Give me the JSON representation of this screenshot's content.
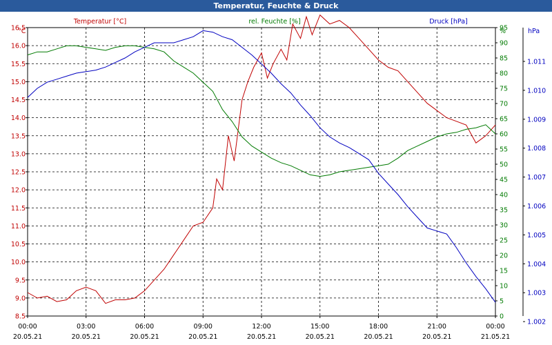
{
  "window": {
    "title": "Temperatur, Feuchte & Druck"
  },
  "chart_data": {
    "type": "line",
    "title": "Temperatur, Feuchte & Druck",
    "x_ticks": [
      {
        "time": "00:00",
        "date": "20.05.21"
      },
      {
        "time": "03:00",
        "date": "20.05.21"
      },
      {
        "time": "06:00",
        "date": "20.05.21"
      },
      {
        "time": "09:00",
        "date": "20.05.21"
      },
      {
        "time": "12:00",
        "date": "20.05.21"
      },
      {
        "time": "15:00",
        "date": "20.05.21"
      },
      {
        "time": "18:00",
        "date": "20.05.21"
      },
      {
        "time": "21:00",
        "date": "20.05.21"
      },
      {
        "time": "00:00",
        "date": "21.05.21"
      }
    ],
    "x_range_hours": [
      0,
      24
    ],
    "axes": {
      "temperature": {
        "unit": "°C",
        "min": 8.5,
        "max": 16.5,
        "ticks": [
          "16.5",
          "16.0",
          "15.5",
          "15.0",
          "14.5",
          "14.0",
          "13.5",
          "13.0",
          "12.5",
          "12.0",
          "11.5",
          "11.0",
          "10.5",
          "10.0",
          "9.5",
          "9.0",
          "8.5"
        ]
      },
      "humidity": {
        "unit": "%",
        "min": 0,
        "max": 95,
        "ticks": [
          "95",
          "90",
          "85",
          "80",
          "75",
          "70",
          "65",
          "60",
          "55",
          "50",
          "45",
          "40",
          "35",
          "30",
          "25",
          "20",
          "15",
          "10",
          "5",
          "0"
        ]
      },
      "pressure": {
        "unit": "hPa",
        "ticks": [
          "1.011",
          "1.010",
          "1.009",
          "1.008",
          "1.007",
          "1.006",
          "1.005",
          "1.004",
          "1.003",
          "1.002"
        ]
      }
    },
    "grid": true,
    "series": [
      {
        "name": "Temperatur [°C]",
        "color": "#c00000",
        "axis": "temperature",
        "x": [
          0,
          0.5,
          1,
          1.5,
          2,
          2.5,
          3,
          3.5,
          4,
          4.5,
          5,
          5.5,
          6,
          6.5,
          7,
          7.5,
          8,
          8.5,
          9,
          9.5,
          9.7,
          10,
          10.3,
          10.6,
          11,
          11.3,
          11.6,
          12,
          12.3,
          12.6,
          13,
          13.3,
          13.6,
          14,
          14.3,
          14.6,
          15,
          15.5,
          16,
          16.5,
          17,
          17.5,
          18,
          18.5,
          19,
          19.5,
          20,
          20.5,
          21,
          21.5,
          22,
          22.5,
          23,
          23.5,
          24
        ],
        "y": [
          9.15,
          9.0,
          9.05,
          8.9,
          8.95,
          9.2,
          9.3,
          9.2,
          8.85,
          8.95,
          8.95,
          9.0,
          9.2,
          9.5,
          9.8,
          10.2,
          10.6,
          11.0,
          11.1,
          11.5,
          12.3,
          12.0,
          13.5,
          12.8,
          14.5,
          15.0,
          15.4,
          15.8,
          15.1,
          15.5,
          15.9,
          15.6,
          16.6,
          16.2,
          16.8,
          16.3,
          16.85,
          16.6,
          16.7,
          16.5,
          16.2,
          15.9,
          15.6,
          15.4,
          15.3,
          15.0,
          14.7,
          14.4,
          14.2,
          14.0,
          13.9,
          13.8,
          13.3,
          13.5,
          13.8
        ]
      },
      {
        "name": "rel. Feuchte [%]",
        "color": "#007a00",
        "axis": "humidity",
        "x": [
          0,
          0.5,
          1,
          1.5,
          2,
          2.5,
          3,
          3.5,
          4,
          4.5,
          5,
          5.5,
          6,
          6.5,
          7,
          7.5,
          8,
          8.5,
          9,
          9.5,
          10,
          10.5,
          11,
          11.5,
          12,
          12.5,
          13,
          13.5,
          14,
          14.5,
          15,
          15.5,
          16,
          16.5,
          17,
          17.5,
          18,
          18.5,
          19,
          19.5,
          20,
          20.5,
          21,
          21.5,
          22,
          22.5,
          23,
          23.5,
          24
        ],
        "y": [
          86,
          87,
          87,
          88,
          89,
          89,
          88.5,
          88,
          87.5,
          88.5,
          89,
          89,
          88.5,
          88,
          87,
          84,
          82,
          80,
          77,
          74,
          68,
          64,
          59,
          56,
          54,
          52,
          50.5,
          49.5,
          48,
          46.5,
          46,
          46.5,
          47.5,
          48,
          48.5,
          49,
          49.5,
          50,
          52,
          54.5,
          56,
          57.5,
          59,
          60,
          60.5,
          61.5,
          62,
          63,
          60
        ]
      },
      {
        "name": "Druck [hPa]",
        "color": "#0000c0",
        "axis": "pressure",
        "x": [
          0,
          0.5,
          1,
          1.5,
          2,
          2.5,
          3,
          3.5,
          4,
          4.5,
          5,
          5.5,
          6,
          6.5,
          7,
          7.5,
          8,
          8.5,
          9,
          9.5,
          10,
          10.5,
          11,
          11.5,
          12,
          12.5,
          13,
          13.5,
          14,
          14.5,
          15,
          15.5,
          16,
          16.5,
          17,
          17.5,
          18,
          18.5,
          19,
          19.5,
          20,
          20.5,
          21,
          21.5,
          22,
          22.5,
          23,
          23.5,
          24
        ],
        "y": [
          72,
          75,
          77,
          78,
          79,
          80,
          80.5,
          81,
          82,
          83.5,
          85,
          87,
          88.5,
          90,
          90,
          90,
          91,
          92,
          94,
          93.5,
          92,
          91,
          88.5,
          86,
          83,
          80,
          76.5,
          73.5,
          69.5,
          66,
          62,
          59,
          57,
          55.5,
          53.5,
          51.5,
          47,
          43.5,
          40,
          36,
          32.5,
          29,
          28,
          27,
          22.5,
          17.5,
          13,
          9,
          4.5
        ]
      }
    ]
  }
}
